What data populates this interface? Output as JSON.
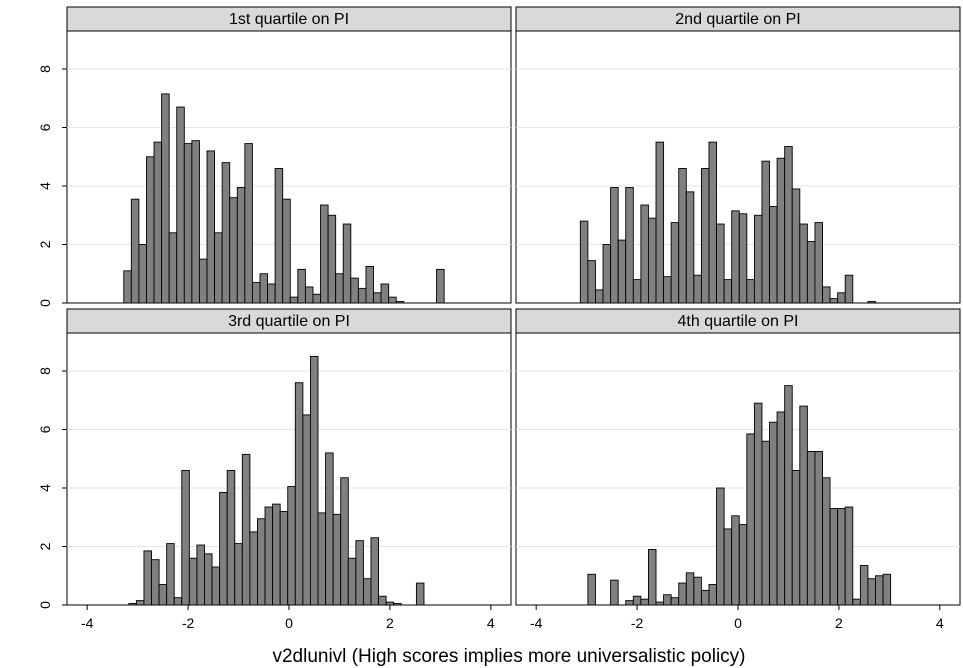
{
  "chart_data": {
    "type": "bar",
    "subtype": "histogram-facets",
    "xlabel": "v2dlunivl (High scores implies more universalistic policy)",
    "ylabel": "",
    "xlim": [
      -4.4,
      4.4
    ],
    "ylim": [
      0,
      9.3
    ],
    "x_ticks": [
      -4,
      -2,
      0,
      2,
      4
    ],
    "y_ticks": [
      0,
      2,
      4,
      6,
      8
    ],
    "bin_width": 0.15,
    "grid": true,
    "bar_color": "#808080",
    "strip_color": "#d9d9d9",
    "panels": [
      {
        "title": "1st quartile on PI",
        "bins": [
          {
            "x": -3.2,
            "y": 1.1
          },
          {
            "x": -3.05,
            "y": 3.55
          },
          {
            "x": -2.9,
            "y": 2.0
          },
          {
            "x": -2.75,
            "y": 5.0
          },
          {
            "x": -2.6,
            "y": 5.5
          },
          {
            "x": -2.45,
            "y": 7.15
          },
          {
            "x": -2.3,
            "y": 2.4
          },
          {
            "x": -2.15,
            "y": 6.7
          },
          {
            "x": -2.0,
            "y": 5.45
          },
          {
            "x": -1.85,
            "y": 5.55
          },
          {
            "x": -1.7,
            "y": 1.5
          },
          {
            "x": -1.55,
            "y": 5.2
          },
          {
            "x": -1.4,
            "y": 2.4
          },
          {
            "x": -1.25,
            "y": 4.8
          },
          {
            "x": -1.1,
            "y": 3.6
          },
          {
            "x": -0.95,
            "y": 3.95
          },
          {
            "x": -0.8,
            "y": 5.45
          },
          {
            "x": -0.65,
            "y": 0.7
          },
          {
            "x": -0.5,
            "y": 1.0
          },
          {
            "x": -0.35,
            "y": 0.65
          },
          {
            "x": -0.2,
            "y": 4.6
          },
          {
            "x": -0.05,
            "y": 3.55
          },
          {
            "x": 0.1,
            "y": 0.2
          },
          {
            "x": 0.25,
            "y": 1.15
          },
          {
            "x": 0.4,
            "y": 0.55
          },
          {
            "x": 0.55,
            "y": 0.3
          },
          {
            "x": 0.7,
            "y": 3.35
          },
          {
            "x": 0.85,
            "y": 3.0
          },
          {
            "x": 1.0,
            "y": 1.0
          },
          {
            "x": 1.15,
            "y": 2.7
          },
          {
            "x": 1.3,
            "y": 0.85
          },
          {
            "x": 1.45,
            "y": 0.5
          },
          {
            "x": 1.6,
            "y": 1.25
          },
          {
            "x": 1.75,
            "y": 0.35
          },
          {
            "x": 1.9,
            "y": 0.65
          },
          {
            "x": 2.05,
            "y": 0.2
          },
          {
            "x": 2.2,
            "y": 0.05
          },
          {
            "x": 3.0,
            "y": 1.15
          }
        ]
      },
      {
        "title": "2nd quartile on PI",
        "bins": [
          {
            "x": -3.05,
            "y": 2.8
          },
          {
            "x": -2.9,
            "y": 1.45
          },
          {
            "x": -2.75,
            "y": 0.45
          },
          {
            "x": -2.6,
            "y": 2.0
          },
          {
            "x": -2.45,
            "y": 3.95
          },
          {
            "x": -2.3,
            "y": 2.15
          },
          {
            "x": -2.15,
            "y": 3.95
          },
          {
            "x": -2.0,
            "y": 0.8
          },
          {
            "x": -1.85,
            "y": 3.35
          },
          {
            "x": -1.7,
            "y": 2.9
          },
          {
            "x": -1.55,
            "y": 5.5
          },
          {
            "x": -1.4,
            "y": 0.9
          },
          {
            "x": -1.25,
            "y": 2.75
          },
          {
            "x": -1.1,
            "y": 4.6
          },
          {
            "x": -0.95,
            "y": 3.8
          },
          {
            "x": -0.8,
            "y": 0.95
          },
          {
            "x": -0.65,
            "y": 4.6
          },
          {
            "x": -0.5,
            "y": 5.5
          },
          {
            "x": -0.35,
            "y": 2.7
          },
          {
            "x": -0.2,
            "y": 0.8
          },
          {
            "x": -0.05,
            "y": 3.15
          },
          {
            "x": 0.1,
            "y": 3.05
          },
          {
            "x": 0.25,
            "y": 0.8
          },
          {
            "x": 0.4,
            "y": 3.0
          },
          {
            "x": 0.55,
            "y": 4.85
          },
          {
            "x": 0.7,
            "y": 3.3
          },
          {
            "x": 0.85,
            "y": 4.95
          },
          {
            "x": 1.0,
            "y": 5.35
          },
          {
            "x": 1.15,
            "y": 3.9
          },
          {
            "x": 1.3,
            "y": 2.7
          },
          {
            "x": 1.45,
            "y": 2.1
          },
          {
            "x": 1.6,
            "y": 2.75
          },
          {
            "x": 1.75,
            "y": 0.55
          },
          {
            "x": 1.9,
            "y": 0.15
          },
          {
            "x": 2.05,
            "y": 0.35
          },
          {
            "x": 2.2,
            "y": 0.95
          },
          {
            "x": 2.65,
            "y": 0.05
          }
        ]
      },
      {
        "title": "3rd quartile on PI",
        "bins": [
          {
            "x": -3.1,
            "y": 0.05
          },
          {
            "x": -2.95,
            "y": 0.15
          },
          {
            "x": -2.8,
            "y": 1.85
          },
          {
            "x": -2.65,
            "y": 1.55
          },
          {
            "x": -2.5,
            "y": 0.7
          },
          {
            "x": -2.35,
            "y": 2.1
          },
          {
            "x": -2.2,
            "y": 0.25
          },
          {
            "x": -2.05,
            "y": 4.6
          },
          {
            "x": -1.9,
            "y": 1.6
          },
          {
            "x": -1.75,
            "y": 2.05
          },
          {
            "x": -1.6,
            "y": 1.75
          },
          {
            "x": -1.45,
            "y": 1.3
          },
          {
            "x": -1.3,
            "y": 3.85
          },
          {
            "x": -1.15,
            "y": 4.6
          },
          {
            "x": -1.0,
            "y": 2.1
          },
          {
            "x": -0.85,
            "y": 5.15
          },
          {
            "x": -0.7,
            "y": 2.5
          },
          {
            "x": -0.55,
            "y": 2.95
          },
          {
            "x": -0.4,
            "y": 3.35
          },
          {
            "x": -0.25,
            "y": 3.45
          },
          {
            "x": -0.1,
            "y": 3.2
          },
          {
            "x": 0.05,
            "y": 4.05
          },
          {
            "x": 0.2,
            "y": 7.6
          },
          {
            "x": 0.35,
            "y": 6.5
          },
          {
            "x": 0.5,
            "y": 8.5
          },
          {
            "x": 0.65,
            "y": 3.15
          },
          {
            "x": 0.8,
            "y": 5.2
          },
          {
            "x": 0.95,
            "y": 3.1
          },
          {
            "x": 1.1,
            "y": 4.35
          },
          {
            "x": 1.25,
            "y": 1.6
          },
          {
            "x": 1.4,
            "y": 2.2
          },
          {
            "x": 1.55,
            "y": 0.9
          },
          {
            "x": 1.7,
            "y": 2.3
          },
          {
            "x": 1.85,
            "y": 0.3
          },
          {
            "x": 2.0,
            "y": 0.1
          },
          {
            "x": 2.15,
            "y": 0.05
          },
          {
            "x": 2.6,
            "y": 0.75
          }
        ]
      },
      {
        "title": "4th quartile on PI",
        "bins": [
          {
            "x": -2.9,
            "y": 1.05
          },
          {
            "x": -2.45,
            "y": 0.85
          },
          {
            "x": -2.15,
            "y": 0.15
          },
          {
            "x": -2.0,
            "y": 0.3
          },
          {
            "x": -1.85,
            "y": 0.2
          },
          {
            "x": -1.7,
            "y": 1.9
          },
          {
            "x": -1.55,
            "y": 0.1
          },
          {
            "x": -1.4,
            "y": 0.35
          },
          {
            "x": -1.25,
            "y": 0.25
          },
          {
            "x": -1.1,
            "y": 0.75
          },
          {
            "x": -0.95,
            "y": 1.1
          },
          {
            "x": -0.8,
            "y": 0.95
          },
          {
            "x": -0.65,
            "y": 0.5
          },
          {
            "x": -0.5,
            "y": 0.7
          },
          {
            "x": -0.35,
            "y": 4.0
          },
          {
            "x": -0.2,
            "y": 2.6
          },
          {
            "x": -0.05,
            "y": 3.05
          },
          {
            "x": 0.1,
            "y": 2.75
          },
          {
            "x": 0.25,
            "y": 5.85
          },
          {
            "x": 0.4,
            "y": 6.9
          },
          {
            "x": 0.55,
            "y": 5.6
          },
          {
            "x": 0.7,
            "y": 6.25
          },
          {
            "x": 0.85,
            "y": 6.6
          },
          {
            "x": 1.0,
            "y": 7.5
          },
          {
            "x": 1.15,
            "y": 4.6
          },
          {
            "x": 1.3,
            "y": 6.8
          },
          {
            "x": 1.45,
            "y": 5.25
          },
          {
            "x": 1.6,
            "y": 5.25
          },
          {
            "x": 1.75,
            "y": 4.35
          },
          {
            "x": 1.9,
            "y": 3.3
          },
          {
            "x": 2.05,
            "y": 3.3
          },
          {
            "x": 2.2,
            "y": 3.35
          },
          {
            "x": 2.35,
            "y": 0.2
          },
          {
            "x": 2.5,
            "y": 1.35
          },
          {
            "x": 2.65,
            "y": 0.9
          },
          {
            "x": 2.8,
            "y": 1.0
          },
          {
            "x": 2.95,
            "y": 1.05
          }
        ]
      }
    ]
  }
}
